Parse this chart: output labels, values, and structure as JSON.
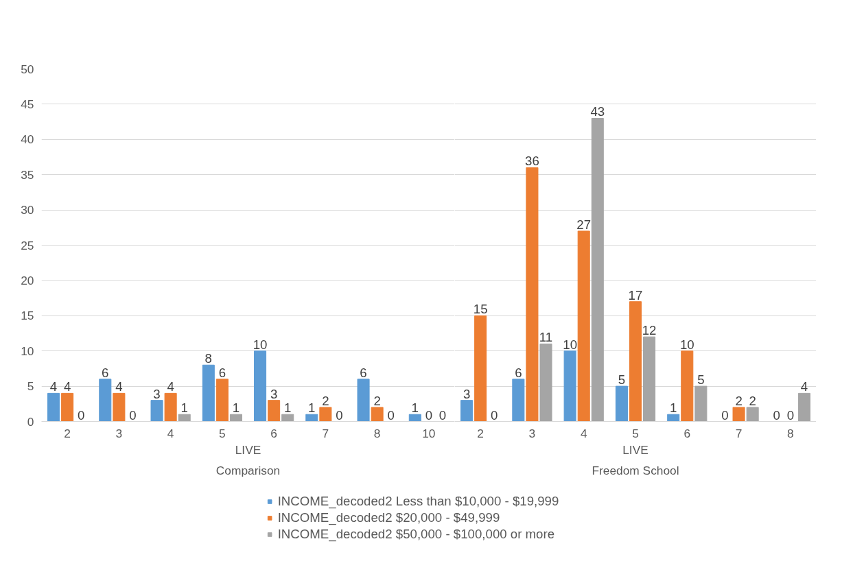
{
  "chart_data": [
    {
      "type": "bar",
      "xlabel": "LIVE",
      "annotations": [
        "Comparison"
      ],
      "categories": [
        "2",
        "3",
        "4",
        "5",
        "6",
        "7",
        "8",
        "10"
      ],
      "series": [
        {
          "name": "INCOME_decoded2 Less than $10,000 - $19,999",
          "color": "#5b9bd5",
          "values": [
            4,
            6,
            3,
            8,
            10,
            1,
            6,
            1
          ]
        },
        {
          "name": "INCOME_decoded2 $20,000 - $49,999",
          "color": "#ed7d31",
          "values": [
            4,
            4,
            4,
            6,
            3,
            2,
            2,
            0
          ]
        },
        {
          "name": "INCOME_decoded2 $50,000 - $100,000 or more",
          "color": "#a5a5a5",
          "values": [
            0,
            0,
            1,
            1,
            1,
            0,
            0,
            0
          ]
        }
      ],
      "ylim": [
        0,
        50
      ],
      "yticks": [
        0,
        5,
        10,
        15,
        20,
        25,
        30,
        35,
        40,
        45,
        50
      ],
      "grid": "y",
      "legend": "bottom",
      "data_labels": true
    },
    {
      "type": "bar",
      "xlabel": "LIVE",
      "annotations": [
        "Freedom School"
      ],
      "categories": [
        "2",
        "3",
        "4",
        "5",
        "6",
        "7",
        "8"
      ],
      "series": [
        {
          "color": "#5b9bd5",
          "values": [
            3,
            6,
            10,
            5,
            1,
            0,
            0
          ]
        },
        {
          "color": "#ed7d31",
          "values": [
            15,
            36,
            27,
            17,
            10,
            2,
            0
          ]
        },
        {
          "color": "#a5a5a5",
          "values": [
            0,
            11,
            43,
            12,
            5,
            2,
            4
          ]
        }
      ],
      "ylim": [
        0,
        50
      ],
      "yticks": [
        0,
        5,
        10,
        15,
        20,
        25,
        30,
        35,
        40,
        45,
        50
      ],
      "grid": "y",
      "tick_labels": "x",
      "data_labels": true
    }
  ]
}
